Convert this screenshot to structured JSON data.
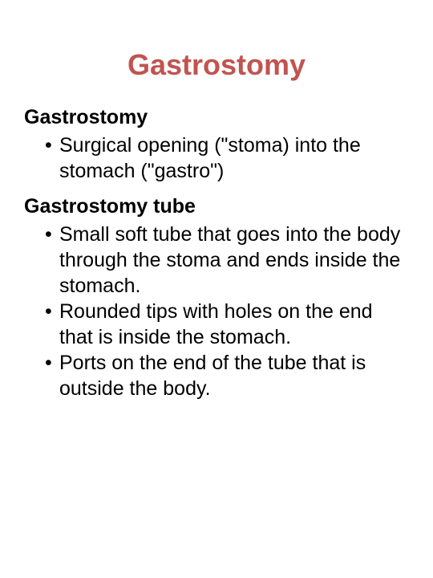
{
  "title": {
    "text": "Gastrostomy",
    "color": "#c1544f",
    "fontsize": 36
  },
  "body": {
    "text_color": "#000000",
    "heading_fontsize": 25,
    "bullet_fontsize": 25
  },
  "sections": [
    {
      "heading": "Gastrostomy",
      "bullets": [
        "Surgical opening (\"stoma) into the stomach (\"gastro\")"
      ]
    },
    {
      "heading": "Gastrostomy tube",
      "bullets": [
        "Small soft tube that goes into the body through the stoma and ends inside the stomach.",
        "Rounded tips with holes on the end that is inside the stomach.",
        "Ports on the end of the tube that is outside the body."
      ]
    }
  ],
  "background_color": "#ffffff"
}
